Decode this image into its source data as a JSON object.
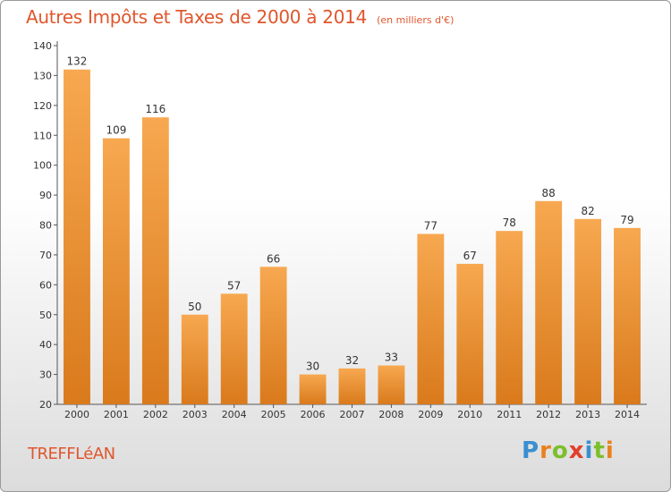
{
  "page": {
    "title": "Autres Impôts et Taxes de 2000 à 2014",
    "unit_note": "(en milliers d'€)",
    "commune": "TREFFLéAN",
    "logo": {
      "text": "Proxiti",
      "letters": [
        "P",
        "r",
        "o",
        "x",
        "i",
        "t",
        "i"
      ],
      "colors": [
        "#3a8fd0",
        "#e8821e",
        "#7cbf2a",
        "#e23f2c",
        "#3a8fd0",
        "#7cbf2a",
        "#e8821e"
      ]
    }
  },
  "chart_data": {
    "type": "bar",
    "title": "Autres Impôts et Taxes de 2000 à 2014",
    "subtitle": "(en milliers d'€)",
    "xlabel": "",
    "ylabel": "",
    "categories": [
      "2000",
      "2001",
      "2002",
      "2003",
      "2004",
      "2005",
      "2006",
      "2007",
      "2008",
      "2009",
      "2010",
      "2011",
      "2012",
      "2013",
      "2014"
    ],
    "values": [
      132,
      109,
      116,
      50,
      57,
      66,
      30,
      32,
      33,
      77,
      67,
      78,
      88,
      82,
      79
    ],
    "ylim": [
      20,
      140
    ],
    "yticks": [
      20,
      30,
      40,
      50,
      60,
      70,
      80,
      90,
      100,
      110,
      120,
      130,
      140
    ],
    "grid": false,
    "legend": "none",
    "bar_color": "#f0922f",
    "bar_color_light": "#f7a850",
    "bar_color_dark": "#d97a1c",
    "axis_color": "#555555"
  }
}
